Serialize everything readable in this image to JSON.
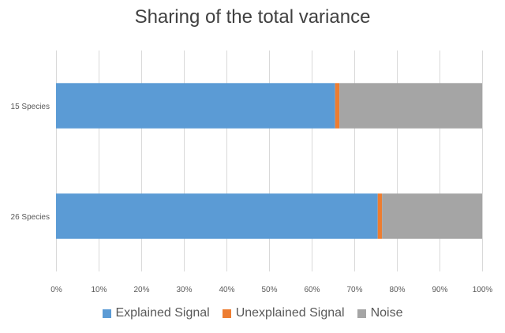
{
  "chart_data": {
    "type": "bar",
    "orientation": "horizontal",
    "stacked": "percent",
    "title": "Sharing of the total variance",
    "categories": [
      "15 Species",
      "26 Species"
    ],
    "series": [
      {
        "name": "Explained Signal",
        "color": "#5B9BD5",
        "values": [
          65.5,
          75.5
        ]
      },
      {
        "name": "Unexplained Signal",
        "color": "#ED7D31",
        "values": [
          1.0,
          1.0
        ]
      },
      {
        "name": "Noise",
        "color": "#A5A5A5",
        "values": [
          33.5,
          23.5
        ]
      }
    ],
    "x_ticks": [
      "0%",
      "10%",
      "20%",
      "30%",
      "40%",
      "50%",
      "60%",
      "70%",
      "80%",
      "90%",
      "100%"
    ],
    "xlim": [
      0,
      100
    ],
    "grid": "vertical",
    "legend_position": "bottom"
  }
}
